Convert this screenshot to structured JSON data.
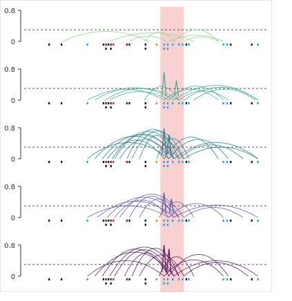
{
  "chart_data": [
    {
      "type": "line",
      "ylim": [
        0,
        0.8
      ],
      "y_ticks": [
        "0.8",
        "0"
      ],
      "threshold": 0.3,
      "highlight_range": [
        0.565,
        0.66
      ],
      "series_color": "#8fd18a",
      "arcs": [
        {
          "x1": 0.17,
          "x2": 0.52,
          "h": 0.26
        },
        {
          "x1": 0.36,
          "x2": 0.7,
          "h": 0.22
        },
        {
          "x1": 0.44,
          "x2": 0.59,
          "h": 0.14
        },
        {
          "x1": 0.5,
          "x2": 0.62,
          "h": 0.24
        },
        {
          "x1": 0.6,
          "x2": 0.82,
          "h": 0.16
        },
        {
          "x1": 0.62,
          "x2": 0.8,
          "h": 0.3
        },
        {
          "x1": 0.66,
          "x2": 0.8,
          "h": 0.12
        }
      ],
      "spikes": []
    },
    {
      "type": "line",
      "ylim": [
        0,
        0.8
      ],
      "y_ticks": [
        "0.8",
        "0"
      ],
      "threshold": 0.3,
      "highlight_range": [
        0.565,
        0.66
      ],
      "series_color": "#3fa79a",
      "arcs": [
        {
          "x1": 0.27,
          "x2": 0.58,
          "h": 0.28
        },
        {
          "x1": 0.3,
          "x2": 0.62,
          "h": 0.32
        },
        {
          "x1": 0.34,
          "x2": 0.64,
          "h": 0.3
        },
        {
          "x1": 0.36,
          "x2": 0.6,
          "h": 0.22
        },
        {
          "x1": 0.5,
          "x2": 0.64,
          "h": 0.35
        },
        {
          "x1": 0.58,
          "x2": 0.8,
          "h": 0.28
        },
        {
          "x1": 0.6,
          "x2": 0.82,
          "h": 0.36
        },
        {
          "x1": 0.62,
          "x2": 0.96,
          "h": 0.38
        },
        {
          "x1": 0.64,
          "x2": 0.84,
          "h": 0.24
        },
        {
          "x1": 0.66,
          "x2": 0.96,
          "h": 0.33
        },
        {
          "x1": 0.7,
          "x2": 0.95,
          "h": 0.28
        }
      ],
      "spikes": [
        {
          "x": 0.58,
          "h": 0.72
        },
        {
          "x": 0.63,
          "h": 0.5
        }
      ]
    },
    {
      "type": "line",
      "ylim": [
        0,
        0.8
      ],
      "y_ticks": [
        "0.8",
        "0"
      ],
      "threshold": 0.3,
      "highlight_range": [
        0.565,
        0.66
      ],
      "series_color": "#237a8a",
      "arcs": [
        {
          "x1": 0.27,
          "x2": 0.6,
          "h": 0.42
        },
        {
          "x1": 0.3,
          "x2": 0.62,
          "h": 0.58
        },
        {
          "x1": 0.33,
          "x2": 0.64,
          "h": 0.62
        },
        {
          "x1": 0.35,
          "x2": 0.58,
          "h": 0.48
        },
        {
          "x1": 0.37,
          "x2": 0.66,
          "h": 0.7
        },
        {
          "x1": 0.38,
          "x2": 0.62,
          "h": 0.64
        },
        {
          "x1": 0.4,
          "x2": 0.6,
          "h": 0.5
        },
        {
          "x1": 0.43,
          "x2": 0.64,
          "h": 0.76
        },
        {
          "x1": 0.45,
          "x2": 0.66,
          "h": 0.72
        },
        {
          "x1": 0.48,
          "x2": 0.62,
          "h": 0.6
        },
        {
          "x1": 0.55,
          "x2": 0.68,
          "h": 0.52
        },
        {
          "x1": 0.58,
          "x2": 0.8,
          "h": 0.56
        },
        {
          "x1": 0.6,
          "x2": 0.84,
          "h": 0.5
        },
        {
          "x1": 0.62,
          "x2": 0.96,
          "h": 0.42
        },
        {
          "x1": 0.64,
          "x2": 0.9,
          "h": 0.36
        },
        {
          "x1": 0.66,
          "x2": 0.96,
          "h": 0.3
        }
      ],
      "spikes": [
        {
          "x": 0.58,
          "h": 0.78
        },
        {
          "x": 0.6,
          "h": 0.62
        }
      ]
    },
    {
      "type": "line",
      "ylim": [
        0,
        0.8
      ],
      "y_ticks": [
        "0.8",
        "0"
      ],
      "threshold": 0.3,
      "highlight_range": [
        0.565,
        0.66
      ],
      "series_color": "#5a55a6",
      "arcs": [
        {
          "x1": 0.27,
          "x2": 0.6,
          "h": 0.3
        },
        {
          "x1": 0.31,
          "x2": 0.62,
          "h": 0.42
        },
        {
          "x1": 0.35,
          "x2": 0.64,
          "h": 0.52
        },
        {
          "x1": 0.38,
          "x2": 0.6,
          "h": 0.45
        },
        {
          "x1": 0.4,
          "x2": 0.66,
          "h": 0.6
        },
        {
          "x1": 0.44,
          "x2": 0.62,
          "h": 0.55
        },
        {
          "x1": 0.48,
          "x2": 0.64,
          "h": 0.48
        },
        {
          "x1": 0.56,
          "x2": 0.7,
          "h": 0.4
        },
        {
          "x1": 0.6,
          "x2": 0.82,
          "h": 0.36
        },
        {
          "x1": 0.62,
          "x2": 0.96,
          "h": 0.32
        },
        {
          "x1": 0.66,
          "x2": 0.9,
          "h": 0.26
        }
      ],
      "spikes": [
        {
          "x": 0.58,
          "h": 0.64
        },
        {
          "x": 0.61,
          "h": 0.48
        }
      ]
    },
    {
      "type": "line",
      "ylim": [
        0,
        0.8
      ],
      "y_ticks": [
        "0.8",
        "0"
      ],
      "threshold": 0.3,
      "highlight_range": [
        0.565,
        0.66
      ],
      "series_color": "#4a1458",
      "arcs": [
        {
          "x1": 0.27,
          "x2": 0.58,
          "h": 0.4
        },
        {
          "x1": 0.3,
          "x2": 0.62,
          "h": 0.62
        },
        {
          "x1": 0.33,
          "x2": 0.6,
          "h": 0.7
        },
        {
          "x1": 0.36,
          "x2": 0.64,
          "h": 0.75
        },
        {
          "x1": 0.38,
          "x2": 0.62,
          "h": 0.68
        },
        {
          "x1": 0.42,
          "x2": 0.6,
          "h": 0.6
        },
        {
          "x1": 0.45,
          "x2": 0.64,
          "h": 0.72
        },
        {
          "x1": 0.48,
          "x2": 0.66,
          "h": 0.55
        },
        {
          "x1": 0.56,
          "x2": 0.7,
          "h": 0.5
        },
        {
          "x1": 0.58,
          "x2": 0.82,
          "h": 0.42
        },
        {
          "x1": 0.6,
          "x2": 0.84,
          "h": 0.56
        },
        {
          "x1": 0.62,
          "x2": 0.96,
          "h": 0.4
        },
        {
          "x1": 0.66,
          "x2": 0.92,
          "h": 0.35
        }
      ],
      "spikes": [
        {
          "x": 0.58,
          "h": 0.8
        },
        {
          "x": 0.6,
          "h": 0.7
        }
      ]
    }
  ],
  "markers": [
    {
      "x": 0.115,
      "row": 0,
      "color": "#222222"
    },
    {
      "x": 0.165,
      "row": 0,
      "color": "#222222"
    },
    {
      "x": 0.27,
      "row": 0,
      "color": "#2aa7e0"
    },
    {
      "x": 0.335,
      "row": 0,
      "color": "#222222"
    },
    {
      "x": 0.345,
      "row": 0,
      "color": "#6b2a3a"
    },
    {
      "x": 0.355,
      "row": 0,
      "color": "#222222"
    },
    {
      "x": 0.365,
      "row": 0,
      "color": "#6b2a3a"
    },
    {
      "x": 0.375,
      "row": 0,
      "color": "#c0392b"
    },
    {
      "x": 0.345,
      "row": 1,
      "color": "#222222"
    },
    {
      "x": 0.365,
      "row": 1,
      "color": "#222222"
    },
    {
      "x": 0.43,
      "row": 0,
      "color": "#6b2a3a"
    },
    {
      "x": 0.44,
      "row": 0,
      "color": "#222222"
    },
    {
      "x": 0.505,
      "row": 0,
      "color": "#222222"
    },
    {
      "x": 0.505,
      "row": 1,
      "color": "#222222"
    },
    {
      "x": 0.55,
      "row": 0,
      "color": "#e08a2a"
    },
    {
      "x": 0.58,
      "row": 0,
      "color": "#2aa7e0"
    },
    {
      "x": 0.595,
      "row": 0,
      "color": "#2aa7e0"
    },
    {
      "x": 0.58,
      "row": 1,
      "color": "#2aa7e0"
    },
    {
      "x": 0.595,
      "row": 1,
      "color": "#2aa7e0"
    },
    {
      "x": 0.615,
      "row": 0,
      "color": "#2aa7e0"
    },
    {
      "x": 0.64,
      "row": 0,
      "color": "#2aa7e0"
    },
    {
      "x": 0.655,
      "row": 0,
      "color": "#2aa7e0"
    },
    {
      "x": 0.67,
      "row": 0,
      "color": "#222222"
    },
    {
      "x": 0.68,
      "row": 0,
      "color": "#2aa7e0"
    },
    {
      "x": 0.82,
      "row": 0,
      "color": "#2aa7e0"
    },
    {
      "x": 0.835,
      "row": 0,
      "color": "#2aa7e0"
    },
    {
      "x": 0.85,
      "row": 0,
      "color": "#222222"
    },
    {
      "x": 0.935,
      "row": 0,
      "color": "#222222"
    },
    {
      "x": 0.96,
      "row": 0,
      "color": "#2aa7e0"
    }
  ]
}
